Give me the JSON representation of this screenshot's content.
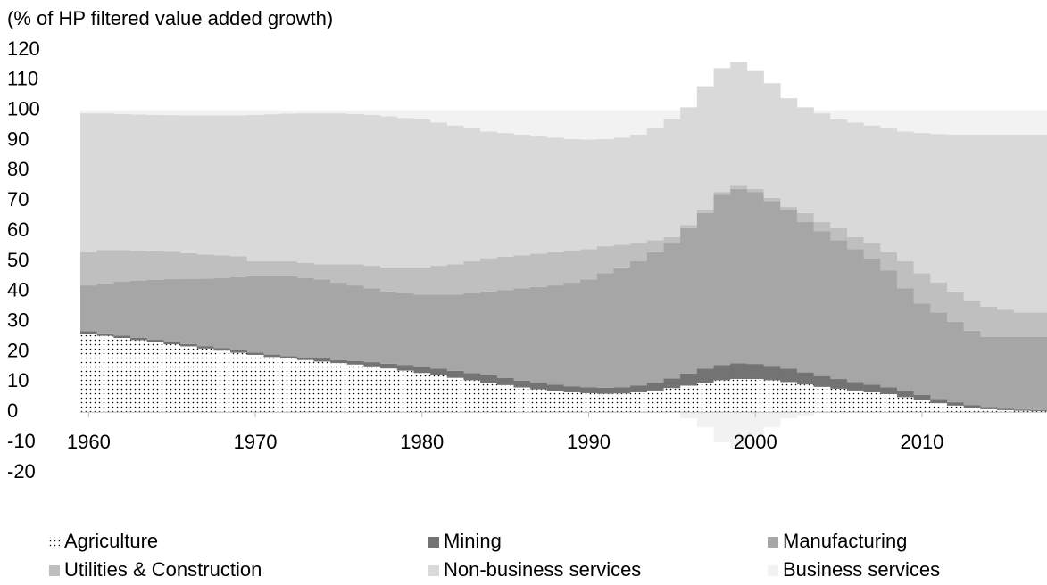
{
  "chart_data": {
    "type": "stacked_bar",
    "y_label": "(% of HP filtered value added growth)",
    "x": [
      1960,
      1961,
      1962,
      1963,
      1964,
      1965,
      1966,
      1967,
      1968,
      1969,
      1970,
      1971,
      1972,
      1973,
      1974,
      1975,
      1976,
      1977,
      1978,
      1979,
      1980,
      1981,
      1982,
      1983,
      1984,
      1985,
      1986,
      1987,
      1988,
      1989,
      1990,
      1991,
      1992,
      1993,
      1994,
      1995,
      1996,
      1997,
      1998,
      1999,
      2000,
      2001,
      2002,
      2003,
      2004,
      2005,
      2006,
      2007,
      2008,
      2009,
      2010,
      2011,
      2012,
      2013,
      2014,
      2015,
      2016,
      2017
    ],
    "xticks": [
      1960,
      1970,
      1980,
      1990,
      2000,
      2010
    ],
    "ylim": [
      -20,
      120
    ],
    "yticks": [
      -20,
      -10,
      0,
      10,
      20,
      30,
      40,
      50,
      60,
      70,
      80,
      90,
      100,
      110,
      120
    ],
    "legend": "bottom",
    "series": [
      {
        "name": "Agriculture",
        "color": "#000000",
        "pattern": "dots",
        "values": [
          26,
          25.3,
          24.6,
          23.9,
          23.2,
          22.5,
          21.8,
          21.1,
          20.4,
          19.7,
          19,
          18.3,
          17.8,
          17.3,
          16.8,
          16.3,
          15.8,
          15.2,
          14.5,
          13.8,
          13,
          12.2,
          11.4,
          10.6,
          9.8,
          9,
          8.2,
          7.6,
          7,
          6.6,
          6.3,
          6.1,
          6.2,
          6.6,
          7.2,
          8,
          8.8,
          9.8,
          10.6,
          11,
          11,
          10.6,
          10,
          9.2,
          8.4,
          7.8,
          7.2,
          6.6,
          6,
          5,
          4,
          3,
          2.2,
          1.5,
          1,
          0.7,
          0.5,
          0.4
        ]
      },
      {
        "name": "Mining",
        "color": "#737373",
        "values": [
          0.8,
          0.8,
          0.8,
          0.8,
          0.8,
          0.8,
          0.8,
          0.8,
          0.8,
          0.8,
          0.8,
          0.8,
          0.8,
          0.9,
          1,
          1,
          1.2,
          1.4,
          1.6,
          1.8,
          2,
          2.2,
          2.3,
          2.4,
          2.4,
          2.4,
          2.3,
          2.2,
          2.1,
          2,
          2,
          2,
          2,
          2.2,
          2.6,
          3.2,
          4,
          4.6,
          5,
          5.2,
          5,
          4.8,
          4.4,
          4,
          3.6,
          3.2,
          2.8,
          2.5,
          2.2,
          2,
          1.7,
          1.4,
          1.1,
          0.9,
          0.7,
          0.5,
          0.4,
          0.3
        ]
      },
      {
        "name": "Manufacturing",
        "color": "#a6a6a6",
        "values": [
          15.2,
          16.6,
          17.8,
          18.8,
          19.8,
          20.8,
          21.6,
          22.4,
          23.3,
          24.2,
          25.2,
          25.9,
          26.4,
          26.3,
          26.2,
          25.7,
          25,
          24.4,
          23.9,
          23.9,
          24,
          24.6,
          25.3,
          26.5,
          27.8,
          29.1,
          30.5,
          31.7,
          32.9,
          34.4,
          35.7,
          37.9,
          39.8,
          41.2,
          43.2,
          44.8,
          48.2,
          51.6,
          56.4,
          57.8,
          57,
          54.6,
          52.6,
          49.8,
          48,
          46,
          44,
          41.9,
          38.8,
          34,
          30.3,
          28.6,
          26.7,
          24.6,
          23.3,
          23.8,
          24.1,
          24.3
        ]
      },
      {
        "name": "Utilities & Construction",
        "color": "#bfbfbf",
        "values": [
          11,
          11,
          10.5,
          10,
          9.5,
          9,
          8.5,
          8,
          7.5,
          7,
          5,
          5,
          5,
          5,
          5,
          6,
          7,
          7.5,
          8,
          8.5,
          9,
          9.5,
          10,
          10.5,
          11,
          11,
          11,
          11,
          11,
          10.5,
          10,
          9,
          7.5,
          6,
          4,
          2,
          1,
          1,
          1,
          1,
          1,
          1,
          1,
          3,
          3,
          4,
          4,
          5,
          6,
          9,
          10,
          10,
          10,
          10,
          10,
          9,
          8,
          8
        ]
      },
      {
        "name": "Non-business services",
        "color": "#d9d9d9",
        "values": [
          46,
          45.3,
          45.1,
          45.1,
          45.2,
          45.3,
          45.6,
          46,
          46.3,
          46.6,
          48.5,
          48.7,
          48.9,
          49.5,
          50,
          50,
          49.8,
          50,
          50,
          49.5,
          49,
          47.5,
          46,
          44,
          42,
          41,
          40,
          39,
          38,
          37,
          36.3,
          35.5,
          35.5,
          36,
          37,
          39,
          39,
          41,
          41,
          41,
          39,
          38,
          36,
          35,
          36,
          36,
          38,
          39,
          41,
          43,
          46.5,
          49.2,
          52,
          55,
          57,
          58,
          59,
          59
        ]
      },
      {
        "name": "Business services",
        "color": "#f2f2f2",
        "values": [
          1,
          1,
          1.2,
          1.4,
          1.5,
          1.6,
          1.7,
          1.7,
          1.7,
          1.7,
          1.5,
          1.3,
          1.1,
          1,
          1,
          1,
          1.2,
          1.5,
          2,
          2.5,
          3,
          4,
          5,
          6,
          7,
          7.5,
          8,
          8.5,
          9,
          9.5,
          9.7,
          9.5,
          9,
          8,
          6,
          3,
          -2,
          -5,
          -10,
          -12,
          -8,
          -5,
          -2,
          -1,
          1,
          3,
          4,
          5,
          6,
          7,
          7.5,
          7.8,
          8,
          8,
          8,
          8,
          8,
          8
        ]
      }
    ]
  }
}
